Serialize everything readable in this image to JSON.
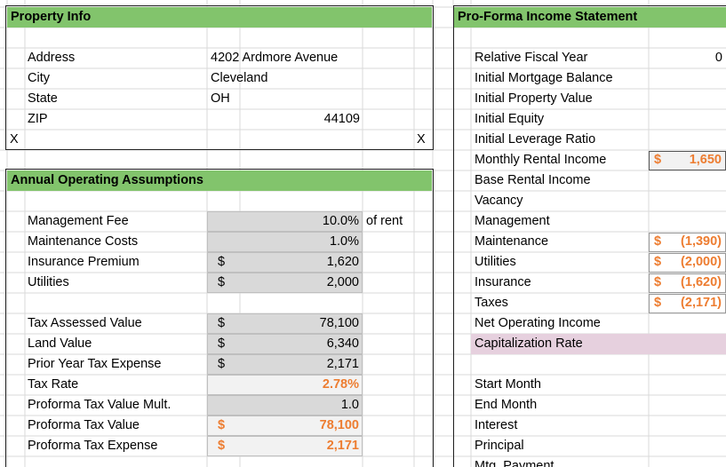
{
  "property_info": {
    "title": "Property Info",
    "rows": [
      {
        "label": "Address",
        "value": "4202 Ardmore Avenue"
      },
      {
        "label": "City",
        "value": "Cleveland"
      },
      {
        "label": "State",
        "value": "OH"
      },
      {
        "label": "ZIP",
        "value": "44109"
      }
    ],
    "markers": [
      "X",
      "X"
    ]
  },
  "operating_assumptions": {
    "title": "Annual Operating Assumptions",
    "rows": [
      {
        "label": "Management Fee",
        "value": "10.0%",
        "note": "of rent"
      },
      {
        "label": "Maintenance Costs",
        "value": "1.0%"
      },
      {
        "label": "Insurance Premium",
        "currency": "$",
        "value": "1,620"
      },
      {
        "label": "Utilities",
        "currency": "$",
        "value": "2,000"
      },
      {
        "label": "Tax Assessed Value",
        "currency": "$",
        "value": "78,100"
      },
      {
        "label": "Land Value",
        "currency": "$",
        "value": "6,340"
      },
      {
        "label": "Prior Year Tax Expense",
        "currency": "$",
        "value": "2,171"
      },
      {
        "label": "Tax Rate",
        "value": "2.78%"
      },
      {
        "label": "Proforma Tax Value Mult.",
        "value": "1.0"
      },
      {
        "label": "Proforma Tax Value",
        "currency": "$",
        "value": "78,100"
      },
      {
        "label": "Proforma Tax Expense",
        "currency": "$",
        "value": "2,171"
      }
    ]
  },
  "pro_forma": {
    "title": "Pro-Forma Income Statement",
    "rows": [
      {
        "label": "Relative Fiscal Year",
        "value": "0"
      },
      {
        "label": "Initial Mortgage Balance"
      },
      {
        "label": "Initial Property Value"
      },
      {
        "label": "Initial Equity"
      },
      {
        "label": "Initial Leverage Ratio"
      },
      {
        "label": "Monthly Rental Income",
        "currency": "$",
        "value": "1,650"
      },
      {
        "label": "Base Rental Income"
      },
      {
        "label": "Vacancy"
      },
      {
        "label": "Management"
      },
      {
        "label": "Maintenance",
        "currency": "$",
        "value": "(1,390)"
      },
      {
        "label": "Utilities",
        "currency": "$",
        "value": "(2,000)"
      },
      {
        "label": "Insurance",
        "currency": "$",
        "value": "(1,620)"
      },
      {
        "label": "Taxes",
        "currency": "$",
        "value": "(2,171)"
      },
      {
        "label": "Net Operating Income"
      },
      {
        "label": "Capitalization Rate"
      },
      {
        "label": "Start Month"
      },
      {
        "label": "End Month"
      },
      {
        "label": "Interest"
      },
      {
        "label": "Principal"
      },
      {
        "label": "Mtg. Payment"
      }
    ]
  }
}
